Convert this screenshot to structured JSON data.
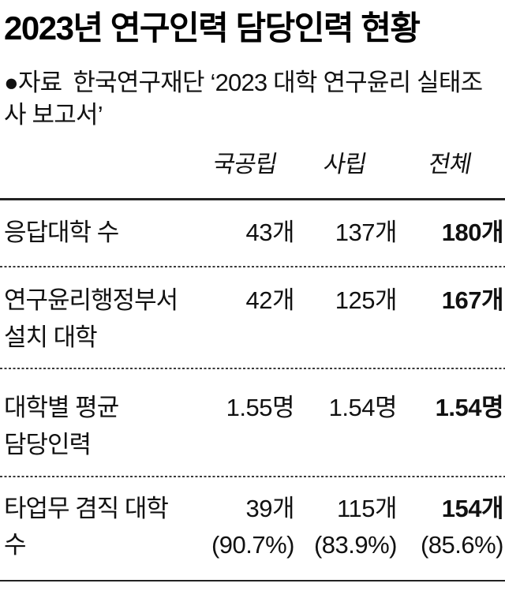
{
  "chart_data": {
    "type": "table",
    "title": "2023년 연구인력 담당인력 현황",
    "source_bullet": "●",
    "source_label": "자료",
    "source_text": "한국연구재단 ‘2023 대학 연구윤리 실태조사 보고서’",
    "columns": [
      "국공립",
      "사립",
      "전체"
    ],
    "rows": [
      {
        "label_lines": [
          "응답대학 수"
        ],
        "values": [
          "43개",
          "137개",
          "180개"
        ]
      },
      {
        "label_lines": [
          "연구윤리행정부서",
          "설치 대학"
        ],
        "values": [
          "42개",
          "125개",
          "167개"
        ]
      },
      {
        "label_lines": [
          "대학별 평균",
          "담당인력"
        ],
        "values": [
          "1.55명",
          "1.54명",
          "1.54명"
        ]
      },
      {
        "label_lines": [
          "타업무 겸직 대학",
          "수"
        ],
        "values": [
          "39개",
          "115개",
          "154개"
        ],
        "sub_values": [
          "(90.7%)",
          "(83.9%)",
          "(85.6%)"
        ]
      }
    ],
    "layout": {
      "legend": "none",
      "grid": "horizontal-rules",
      "total_column_bold": true
    },
    "colors": {
      "background": "#ffffff",
      "text": "#111111",
      "title": "#000000",
      "rule": "#222222",
      "dotted_rule": "#3a3a3a"
    }
  }
}
